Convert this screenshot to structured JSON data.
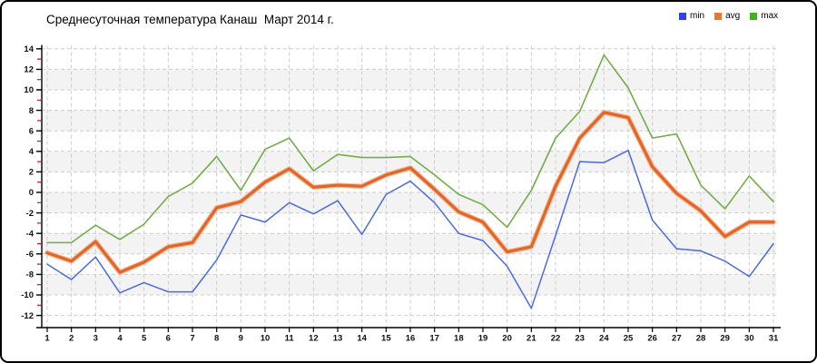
{
  "title": "Среднесуточная температура Канаш  Март 2014 г.",
  "legend": {
    "position": "top-right",
    "items": [
      {
        "label": "min",
        "swatch_color": "#2b46e6"
      },
      {
        "label": "avg",
        "swatch_color": "#ed7431"
      },
      {
        "label": "max",
        "swatch_color": "#43b022"
      }
    ]
  },
  "chart_data": {
    "type": "line",
    "title": "Среднесуточная температура Канаш  Март 2014 г.",
    "xlabel": "",
    "ylabel": "",
    "categories": [
      1,
      2,
      3,
      4,
      5,
      6,
      7,
      8,
      9,
      10,
      11,
      12,
      13,
      14,
      15,
      16,
      17,
      18,
      19,
      20,
      21,
      22,
      23,
      24,
      25,
      26,
      27,
      28,
      29,
      30,
      31
    ],
    "series": [
      {
        "name": "min",
        "color": "#4a6be0",
        "values": [
          -7.0,
          -8.5,
          -6.3,
          -9.8,
          -8.8,
          -9.7,
          -9.7,
          -6.6,
          -2.2,
          -2.9,
          -1.0,
          -2.1,
          -0.8,
          -4.1,
          -0.2,
          1.1,
          -1.0,
          -4.0,
          -4.7,
          -7.2,
          -11.3,
          -4.2,
          3.0,
          2.9,
          4.1,
          -2.7,
          -5.5,
          -5.7,
          -6.7,
          -8.2,
          -5.0
        ]
      },
      {
        "name": "avg",
        "color": "#e2662a",
        "halo_color": "#f6b489",
        "values": [
          -5.9,
          -6.7,
          -4.8,
          -7.8,
          -6.8,
          -5.3,
          -4.9,
          -1.5,
          -0.9,
          1.0,
          2.3,
          0.5,
          0.7,
          0.6,
          1.7,
          2.4,
          0.3,
          -1.9,
          -2.9,
          -5.8,
          -5.3,
          0.6,
          5.3,
          7.8,
          7.3,
          2.5,
          -0.1,
          -1.8,
          -4.3,
          -2.9,
          -2.9
        ]
      },
      {
        "name": "max",
        "color": "#72ad47",
        "values": [
          -4.9,
          -4.9,
          -3.2,
          -4.6,
          -3.1,
          -0.4,
          0.9,
          3.5,
          0.2,
          4.2,
          5.3,
          2.1,
          3.7,
          3.4,
          3.4,
          3.5,
          1.7,
          -0.2,
          -1.2,
          -3.4,
          0.2,
          5.3,
          7.9,
          13.4,
          10.2,
          5.3,
          5.7,
          0.7,
          -1.6,
          1.6,
          -0.9
        ]
      }
    ],
    "ylim": [
      -12,
      14
    ],
    "y_tick_step": 2,
    "y_minor_tick_step": 1,
    "grid": true,
    "legend_position": "top-right"
  },
  "style": {
    "band_color": "#f3f3f3",
    "grid_color": "#cdcdcd",
    "axis_color": "#000000",
    "major_tick_color": "#000000",
    "minor_tick_color": "#cc1111",
    "label_color": "#111111"
  }
}
